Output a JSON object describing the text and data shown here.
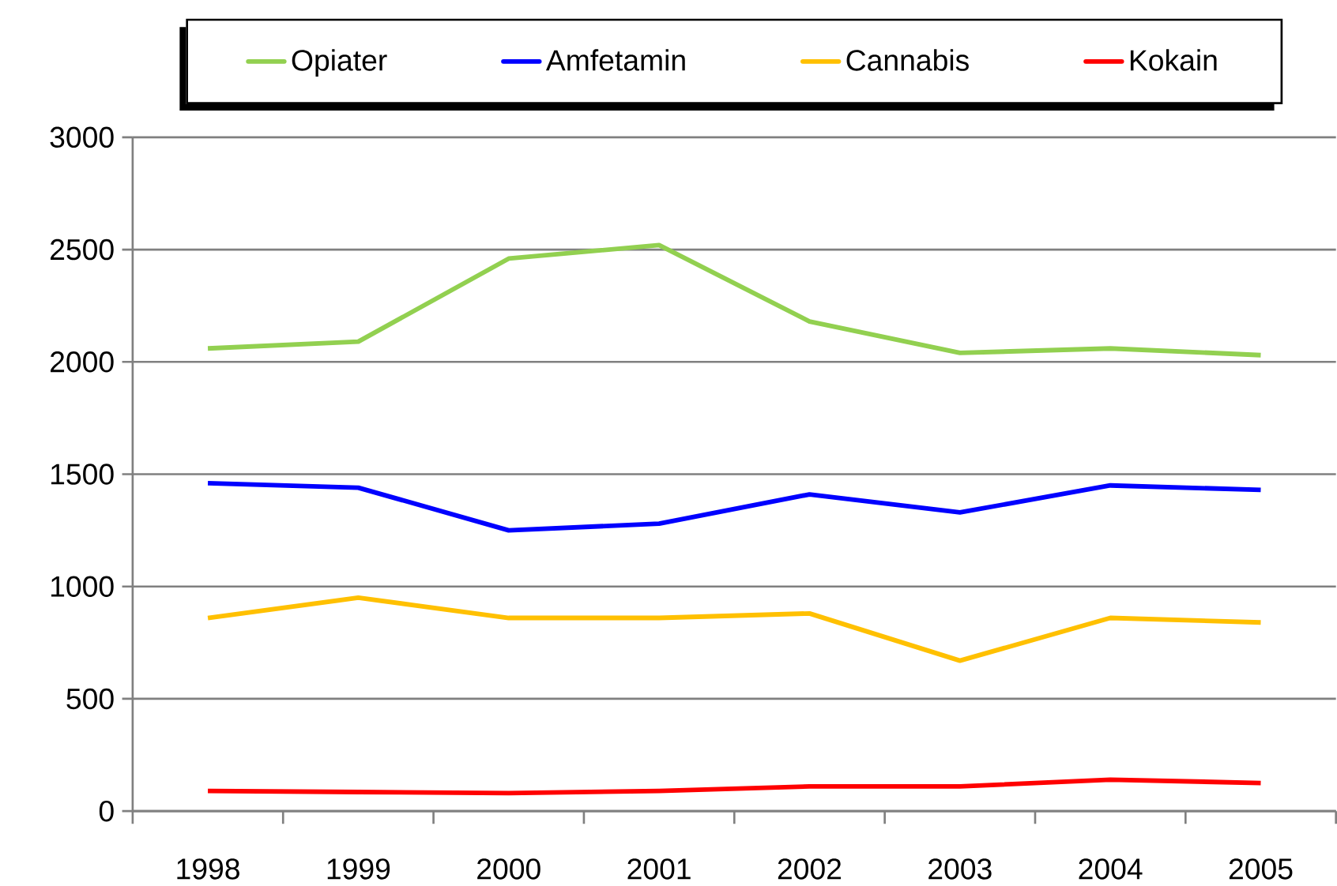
{
  "chart_data": {
    "type": "line",
    "categories": [
      "1998",
      "1999",
      "2000",
      "2001",
      "2002",
      "2003",
      "2004",
      "2005"
    ],
    "series": [
      {
        "name": "Opiater",
        "color": "#92d050",
        "values": [
          2060,
          2090,
          2460,
          2520,
          2180,
          2040,
          2060,
          2030
        ]
      },
      {
        "name": "Amfetamin",
        "color": "#0000ff",
        "values": [
          1460,
          1440,
          1250,
          1280,
          1410,
          1330,
          1450,
          1430
        ]
      },
      {
        "name": "Cannabis",
        "color": "#ffc000",
        "values": [
          860,
          950,
          860,
          860,
          880,
          670,
          860,
          840
        ]
      },
      {
        "name": "Kokain",
        "color": "#ff0000",
        "values": [
          90,
          85,
          80,
          90,
          110,
          110,
          140,
          125
        ]
      }
    ],
    "ylim": [
      0,
      3000
    ],
    "yticks": [
      0,
      500,
      1000,
      1500,
      2000,
      2500,
      3000
    ],
    "grid": "y",
    "legend": "top",
    "marker": "none",
    "line_style": "solid"
  }
}
